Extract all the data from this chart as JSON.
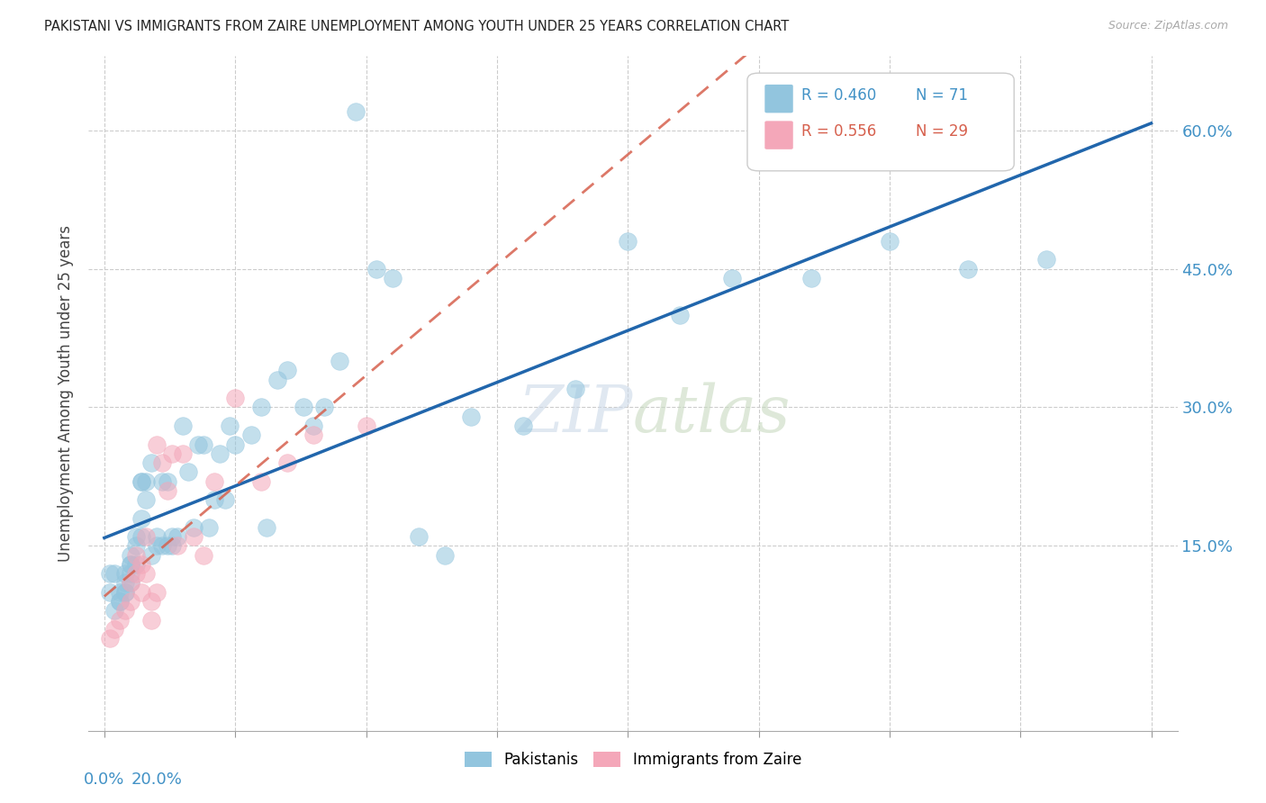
{
  "title": "PAKISTANI VS IMMIGRANTS FROM ZAIRE UNEMPLOYMENT AMONG YOUTH UNDER 25 YEARS CORRELATION CHART",
  "source": "Source: ZipAtlas.com",
  "ylabel": "Unemployment Among Youth under 25 years",
  "legend_label1": "Pakistanis",
  "legend_label2": "Immigrants from Zaire",
  "r1": 0.46,
  "n1": 71,
  "r2": 0.556,
  "n2": 29,
  "blue_color": "#92c5de",
  "pink_color": "#f4a7b9",
  "line_blue": "#2166ac",
  "line_pink": "#d6604d",
  "pakistani_x": [
    0.1,
    0.1,
    0.2,
    0.2,
    0.3,
    0.3,
    0.3,
    0.4,
    0.4,
    0.4,
    0.4,
    0.5,
    0.5,
    0.5,
    0.5,
    0.5,
    0.6,
    0.6,
    0.6,
    0.7,
    0.7,
    0.7,
    0.7,
    0.8,
    0.8,
    0.9,
    0.9,
    1.0,
    1.0,
    1.1,
    1.1,
    1.2,
    1.2,
    1.3,
    1.3,
    1.4,
    1.5,
    1.6,
    1.7,
    1.8,
    1.9,
    2.0,
    2.1,
    2.2,
    2.3,
    2.4,
    2.5,
    2.8,
    3.0,
    3.1,
    3.3,
    3.5,
    3.8,
    4.0,
    4.2,
    4.5,
    4.8,
    5.2,
    5.5,
    6.0,
    6.5,
    7.0,
    8.0,
    9.0,
    10.0,
    11.0,
    12.0,
    13.5,
    15.0,
    16.5,
    18.0
  ],
  "pakistani_y": [
    10.0,
    12.0,
    12.0,
    8.0,
    9.0,
    10.0,
    9.0,
    10.0,
    11.0,
    12.0,
    10.0,
    11.0,
    12.0,
    13.0,
    14.0,
    13.0,
    15.0,
    16.0,
    13.0,
    16.0,
    18.0,
    22.0,
    22.0,
    22.0,
    20.0,
    24.0,
    14.0,
    15.0,
    16.0,
    22.0,
    15.0,
    22.0,
    15.0,
    15.0,
    16.0,
    16.0,
    28.0,
    23.0,
    17.0,
    26.0,
    26.0,
    17.0,
    20.0,
    25.0,
    20.0,
    28.0,
    26.0,
    27.0,
    30.0,
    17.0,
    33.0,
    34.0,
    30.0,
    28.0,
    30.0,
    35.0,
    62.0,
    45.0,
    44.0,
    16.0,
    14.0,
    29.0,
    28.0,
    32.0,
    48.0,
    40.0,
    44.0,
    44.0,
    48.0,
    45.0,
    46.0
  ],
  "zaire_x": [
    0.1,
    0.2,
    0.3,
    0.4,
    0.5,
    0.5,
    0.6,
    0.6,
    0.7,
    0.7,
    0.8,
    0.8,
    0.9,
    0.9,
    1.0,
    1.0,
    1.1,
    1.2,
    1.3,
    1.4,
    1.5,
    1.7,
    1.9,
    2.1,
    2.5,
    3.0,
    3.5,
    4.0,
    5.0
  ],
  "zaire_y": [
    5.0,
    6.0,
    7.0,
    8.0,
    9.0,
    11.0,
    12.0,
    14.0,
    10.0,
    13.0,
    12.0,
    16.0,
    7.0,
    9.0,
    10.0,
    26.0,
    24.0,
    21.0,
    25.0,
    15.0,
    25.0,
    16.0,
    14.0,
    22.0,
    31.0,
    22.0,
    24.0,
    27.0,
    28.0
  ]
}
